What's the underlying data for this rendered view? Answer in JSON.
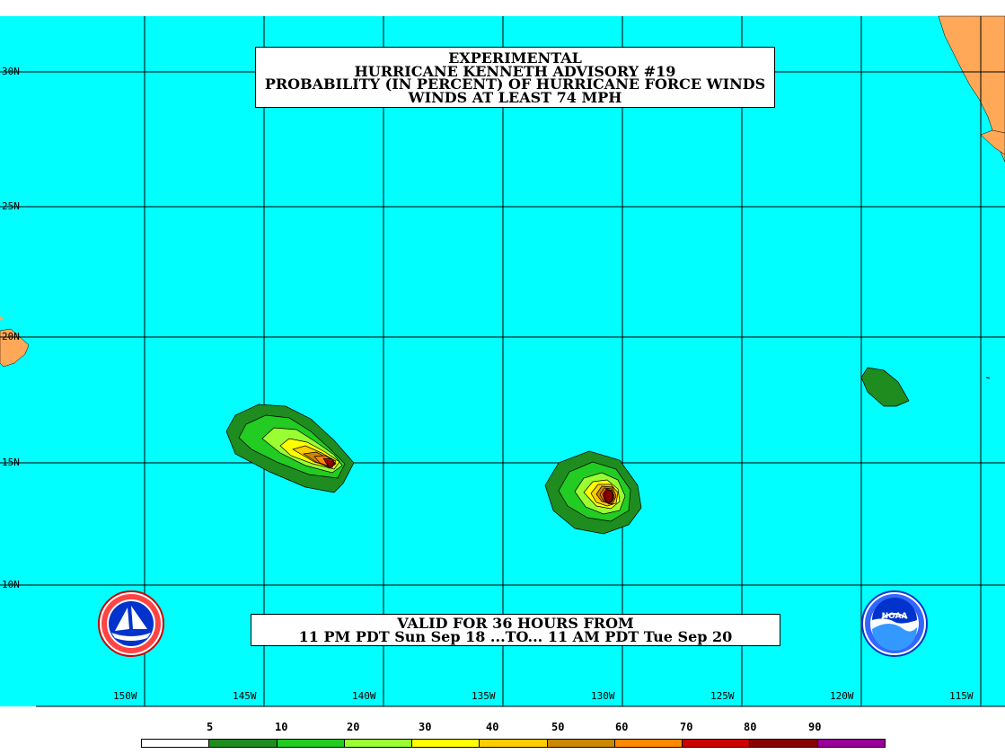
{
  "title": {
    "line1": "EXPERIMENTAL",
    "line2": "HURRICANE KENNETH ADVISORY #19",
    "line3": "PROBABILITY (IN PERCENT) OF HURRICANE FORCE WINDS",
    "line4": "WINDS AT LEAST 74 MPH"
  },
  "validity": {
    "line1": "VALID FOR 36 HOURS FROM",
    "line2": "11 PM PDT Sun Sep 18 ...TO... 11 AM PDT Tue Sep 20"
  },
  "latitude_labels": [
    "30N",
    "25N",
    "20N",
    "15N",
    "10N"
  ],
  "longitude_labels": [
    "150W",
    "145W",
    "140W",
    "135W",
    "130W",
    "125W",
    "120W",
    "115W"
  ],
  "legend": {
    "labels": [
      "5",
      "10",
      "20",
      "30",
      "40",
      "50",
      "60",
      "70",
      "80",
      "90"
    ],
    "colors": [
      "#ffffff",
      "#1e8c1e",
      "#22cc22",
      "#99ff33",
      "#ffff00",
      "#ffcc00",
      "#cc8800",
      "#ff8800",
      "#cc0000",
      "#880000",
      "#990099"
    ]
  },
  "colors": {
    "ocean": "#00ffff",
    "land": "#ffa858",
    "grid": "#000000"
  },
  "icons": {
    "left_logo": "nws-logo-icon",
    "right_logo": "noaa-logo-icon"
  }
}
